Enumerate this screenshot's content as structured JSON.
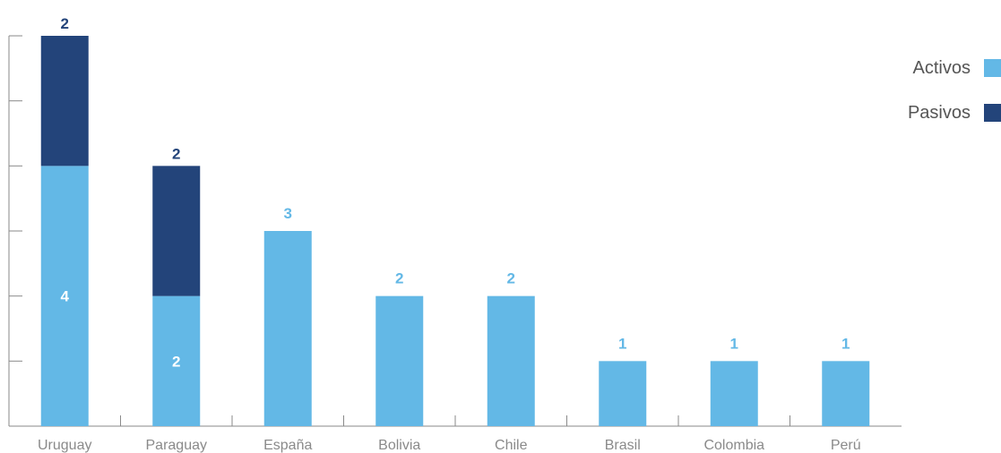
{
  "colors": {
    "activos": "#63b8e6",
    "pasivos": "#23447a",
    "axis": "#8a8a8a",
    "inside_label": "#ffffff"
  },
  "legend": {
    "activos": "Activos",
    "pasivos": "Pasivos"
  },
  "chart_data": {
    "type": "bar",
    "stacked": true,
    "categories": [
      "Uruguay",
      "Paraguay",
      "España",
      "Bolivia",
      "Chile",
      "Brasil",
      "Colombia",
      "Perú"
    ],
    "series": [
      {
        "name": "Activos",
        "values": [
          4,
          2,
          3,
          2,
          2,
          1,
          1,
          1
        ]
      },
      {
        "name": "Pasivos",
        "values": [
          2,
          2,
          0,
          0,
          0,
          0,
          0,
          0
        ]
      }
    ],
    "ylim": [
      0,
      6
    ],
    "legend_position": "top-right",
    "grid": false
  }
}
